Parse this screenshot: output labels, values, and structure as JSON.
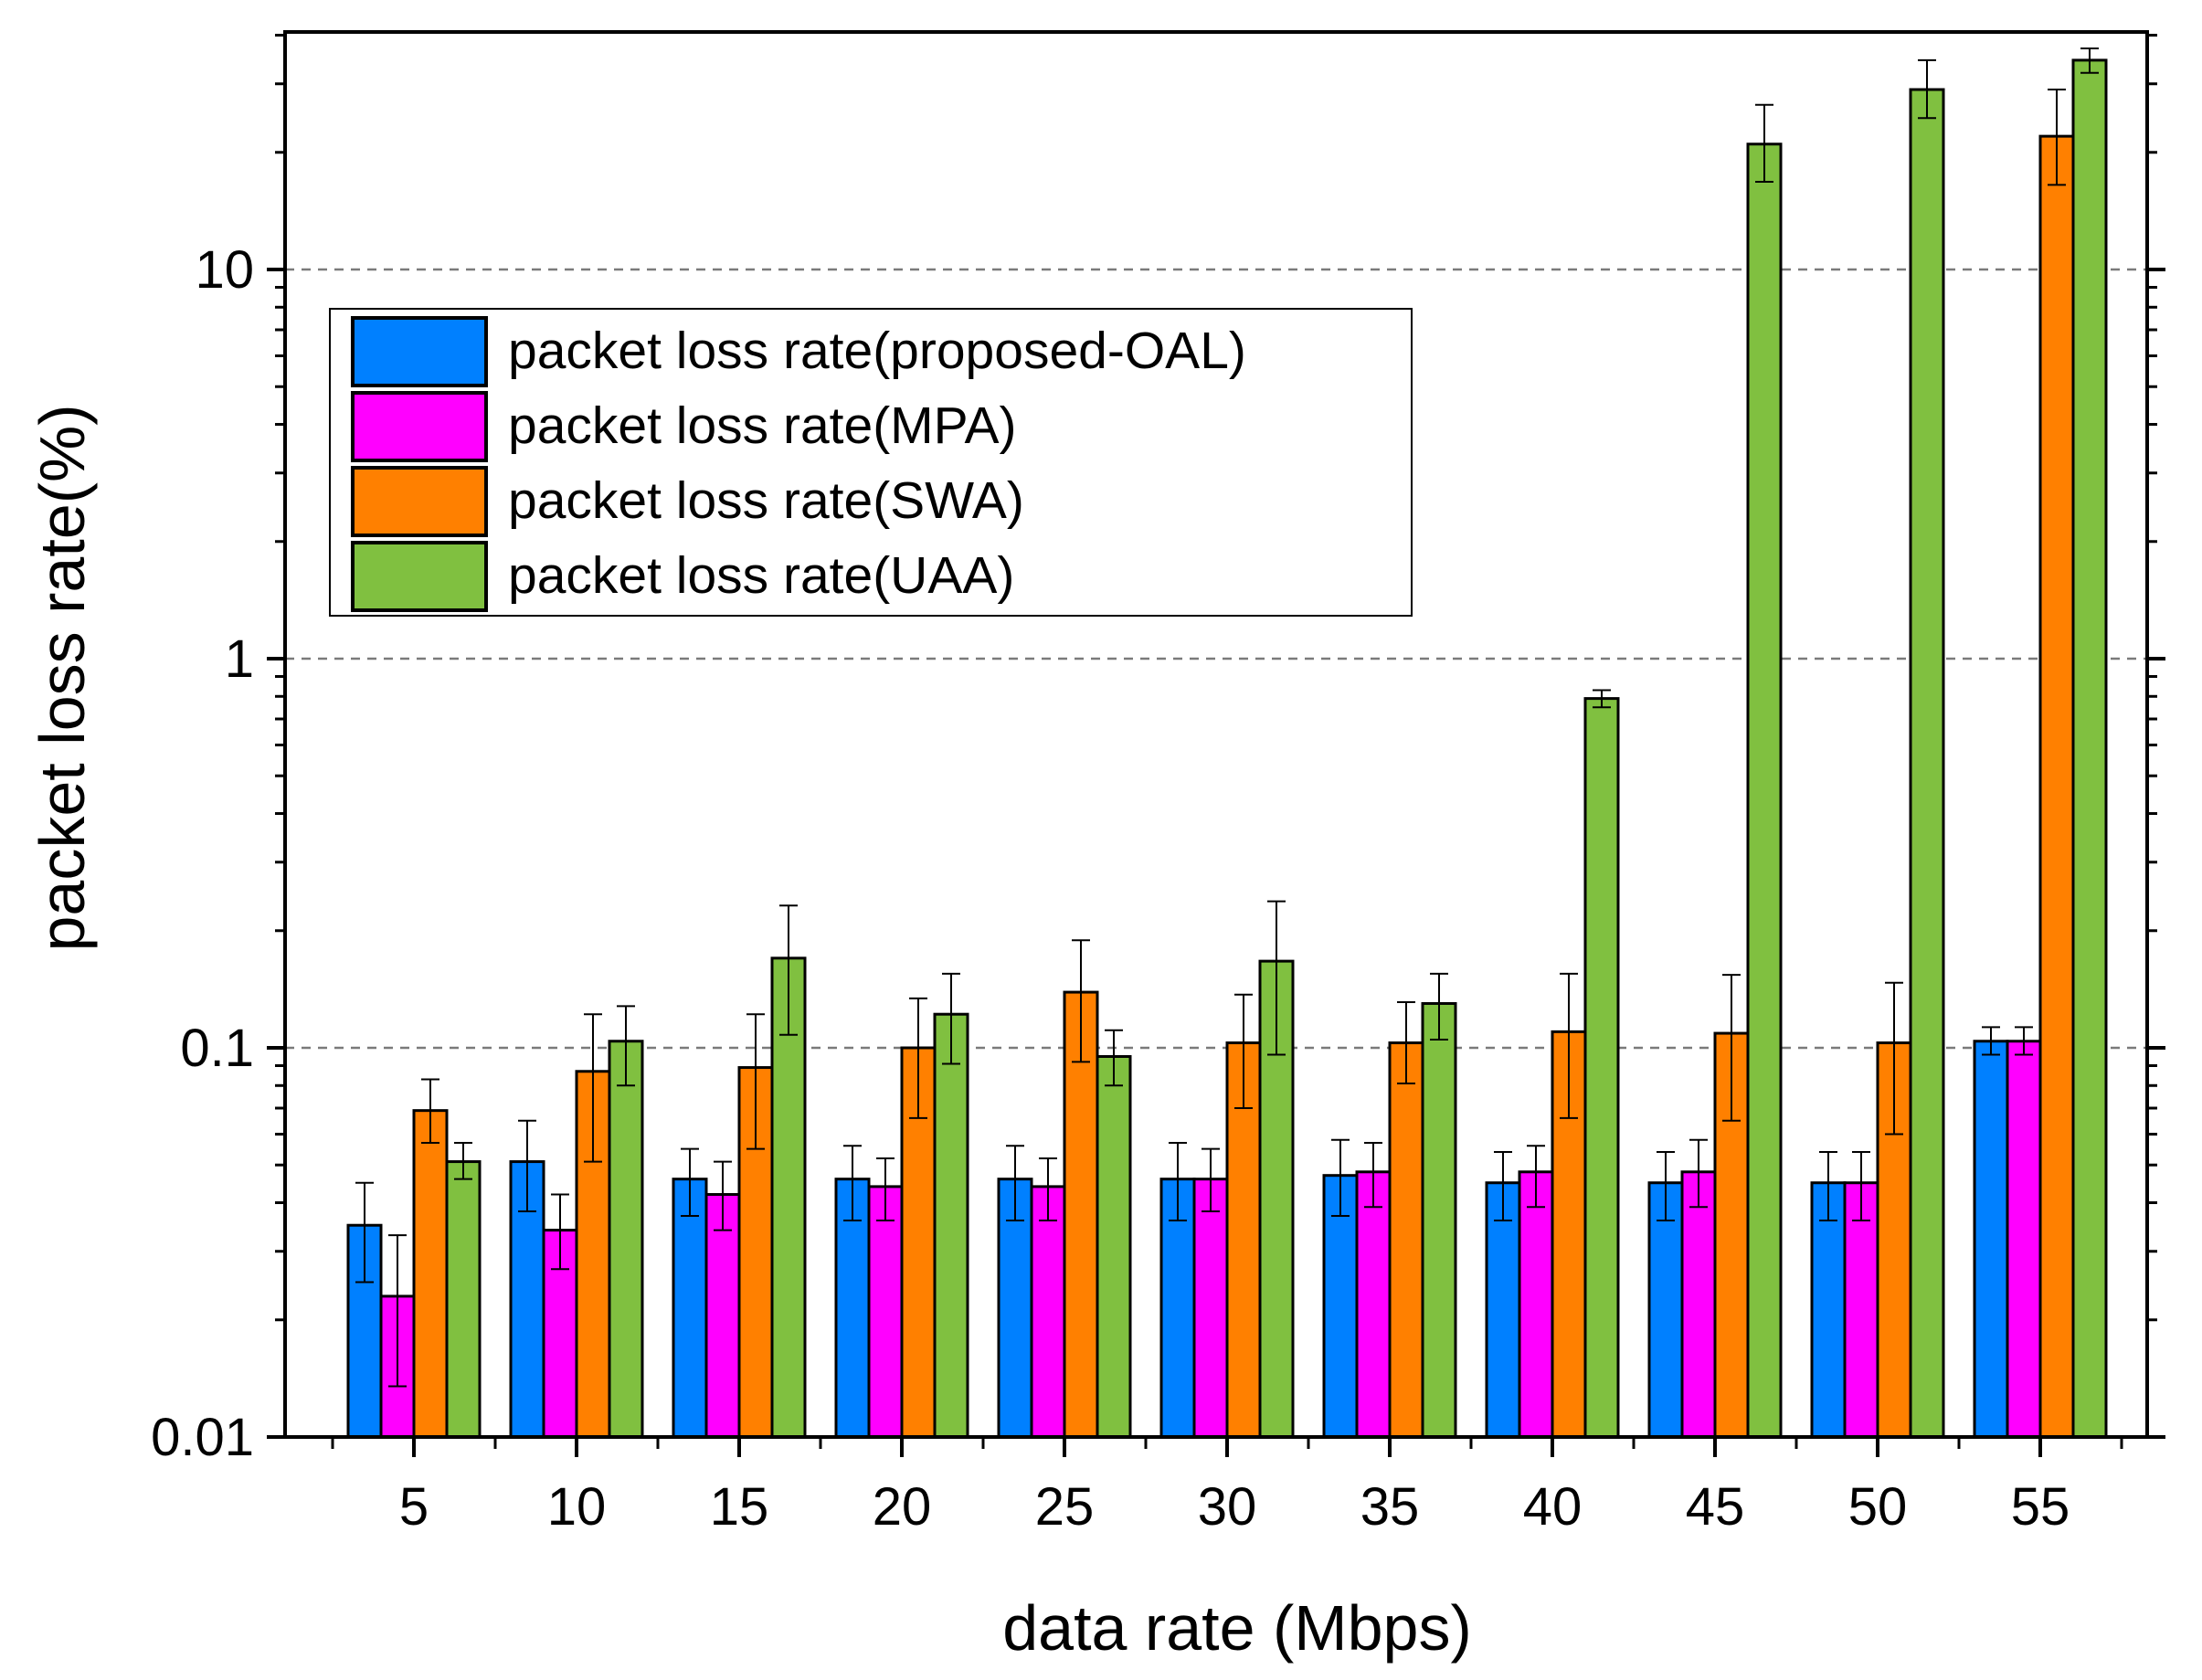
{
  "chart_data": {
    "type": "bar",
    "title": "",
    "xlabel": "data rate (Mbps)",
    "ylabel": "packet loss rate(%)",
    "y_scale": "log",
    "ylim": [
      0.01,
      40
    ],
    "y_ticks": [
      {
        "value": 0.01,
        "label": "0.01"
      },
      {
        "value": 0.1,
        "label": "0.1"
      },
      {
        "value": 1,
        "label": "1"
      },
      {
        "value": 10,
        "label": "10"
      }
    ],
    "grid": "horizontal dashed at major ticks",
    "legend_position": "upper-left",
    "categories": [
      "5",
      "10",
      "15",
      "20",
      "25",
      "30",
      "35",
      "40",
      "45",
      "50",
      "55"
    ],
    "series": [
      {
        "name": "packet loss rate(proposed-OAL)",
        "color": "#0080ff",
        "values": [
          0.035,
          0.051,
          0.046,
          0.046,
          0.046,
          0.046,
          0.047,
          0.045,
          0.045,
          0.045,
          0.104
        ],
        "error_low": [
          0.025,
          0.038,
          0.037,
          0.036,
          0.036,
          0.036,
          0.037,
          0.036,
          0.036,
          0.036,
          0.096
        ],
        "error_high": [
          0.045,
          0.065,
          0.055,
          0.056,
          0.056,
          0.057,
          0.058,
          0.054,
          0.054,
          0.054,
          0.113
        ]
      },
      {
        "name": "packet loss rate(MPA)",
        "color": "#ff00ff",
        "values": [
          0.023,
          0.034,
          0.042,
          0.044,
          0.044,
          0.046,
          0.048,
          0.048,
          0.048,
          0.045,
          0.104
        ],
        "error_low": [
          0.0135,
          0.027,
          0.034,
          0.036,
          0.036,
          0.038,
          0.039,
          0.039,
          0.039,
          0.036,
          0.096
        ],
        "error_high": [
          0.033,
          0.042,
          0.051,
          0.052,
          0.052,
          0.055,
          0.057,
          0.056,
          0.058,
          0.054,
          0.113
        ]
      },
      {
        "name": "packet loss rate(SWA)",
        "color": "#ff8000",
        "values": [
          0.069,
          0.087,
          0.089,
          0.1,
          0.139,
          0.103,
          0.103,
          0.11,
          0.109,
          0.103,
          22.0
        ],
        "error_low": [
          0.057,
          0.051,
          0.055,
          0.066,
          0.092,
          0.07,
          0.081,
          0.066,
          0.065,
          0.06,
          16.5
        ],
        "error_high": [
          0.083,
          0.122,
          0.122,
          0.134,
          0.189,
          0.137,
          0.131,
          0.155,
          0.154,
          0.147,
          29.0
        ]
      },
      {
        "name": "packet loss rate(UAA)",
        "color": "#80c040",
        "values": [
          0.051,
          0.104,
          0.17,
          0.122,
          0.095,
          0.167,
          0.13,
          0.79,
          21.0,
          29.0,
          34.5
        ],
        "error_low": [
          0.046,
          0.08,
          0.108,
          0.091,
          0.08,
          0.096,
          0.105,
          0.75,
          16.8,
          24.5,
          32.0
        ],
        "error_high": [
          0.057,
          0.128,
          0.232,
          0.155,
          0.111,
          0.238,
          0.155,
          0.83,
          26.5,
          34.5,
          37.0
        ]
      }
    ]
  }
}
